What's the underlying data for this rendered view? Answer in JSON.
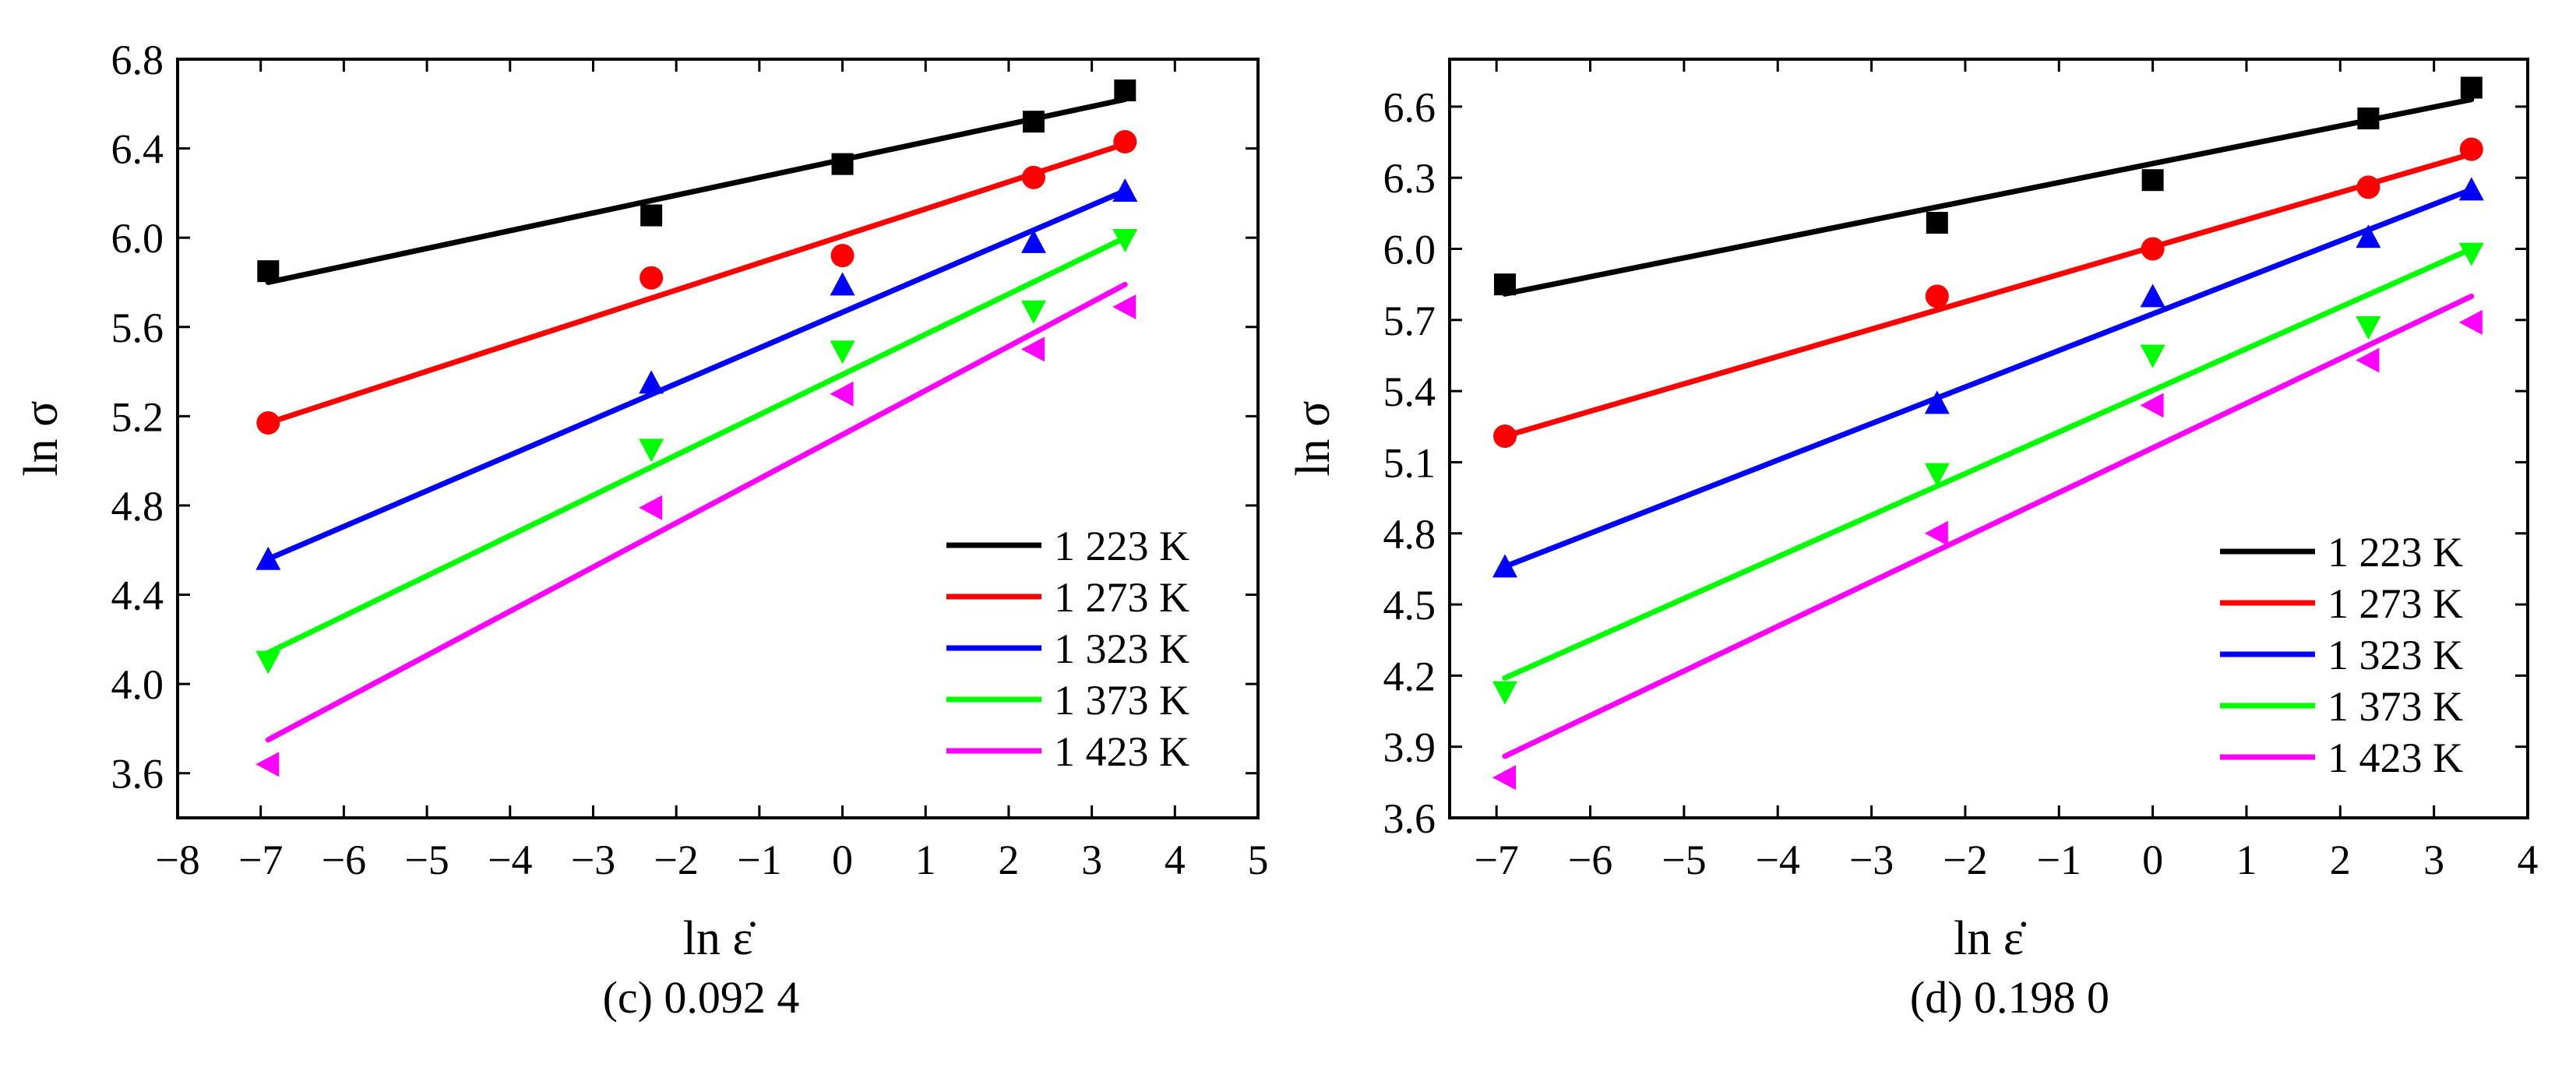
{
  "chart_data": [
    {
      "type": "scatter",
      "panel": "left",
      "caption": "(c) 0.092 4",
      "xlabel": "ln ε̇",
      "ylabel": "ln σ",
      "xlim": [
        -8,
        5
      ],
      "ylim": [
        3.4,
        6.8
      ],
      "xticks": [
        -8,
        -7,
        -6,
        -5,
        -4,
        -3,
        -2,
        -1,
        0,
        1,
        2,
        3,
        4,
        5
      ],
      "yticks": [
        3.6,
        4.0,
        4.4,
        4.8,
        5.2,
        5.6,
        6.0,
        6.4,
        6.8
      ],
      "ytick_labels": [
        "3.6",
        "4.0",
        "4.4",
        "4.8",
        "5.2",
        "5.6",
        "6.0",
        "6.4",
        "6.8"
      ],
      "x": [
        -6.91,
        -2.3,
        0,
        2.3,
        3.4
      ],
      "legend_position": "bottom-right",
      "grid": false,
      "series": [
        {
          "name": "1 223 K",
          "color": "#000000",
          "marker": "square",
          "values": [
            5.85,
            6.1,
            6.33,
            6.52,
            6.66
          ],
          "fit": [
            [
              -6.91,
              5.8
            ],
            [
              3.4,
              6.62
            ]
          ]
        },
        {
          "name": "1 273 K",
          "color": "#ff0000",
          "marker": "circle",
          "values": [
            5.17,
            5.82,
            5.92,
            6.27,
            6.43
          ],
          "fit": [
            [
              -6.91,
              5.17
            ],
            [
              3.4,
              6.42
            ]
          ]
        },
        {
          "name": "1 323 K",
          "color": "#0000ff",
          "marker": "triangle-up",
          "values": [
            4.56,
            5.35,
            5.79,
            5.98,
            6.21
          ],
          "fit": [
            [
              -6.91,
              4.56
            ],
            [
              3.4,
              6.21
            ]
          ]
        },
        {
          "name": "1 373 K",
          "color": "#00ff00",
          "marker": "triangle-down",
          "values": [
            4.1,
            5.05,
            5.49,
            5.67,
            5.99
          ],
          "fit": [
            [
              -6.91,
              4.14
            ],
            [
              3.4,
              6.0
            ]
          ]
        },
        {
          "name": "1 423 K",
          "color": "#ff00ff",
          "marker": "triangle-left",
          "values": [
            3.64,
            4.79,
            5.3,
            5.5,
            5.69
          ],
          "fit": [
            [
              -6.91,
              3.75
            ],
            [
              3.4,
              5.79
            ]
          ]
        }
      ]
    },
    {
      "type": "scatter",
      "panel": "right",
      "caption": "(d) 0.198 0",
      "xlabel": "ln ε̇",
      "ylabel": "ln σ",
      "xlim": [
        -7.5,
        4
      ],
      "ylim": [
        3.6,
        6.8
      ],
      "xticks": [
        -7,
        -6,
        -5,
        -4,
        -3,
        -2,
        -1,
        0,
        1,
        2,
        3,
        4
      ],
      "yticks": [
        3.6,
        3.9,
        4.2,
        4.5,
        4.8,
        5.1,
        5.4,
        5.7,
        6.0,
        6.3,
        6.6
      ],
      "ytick_labels": [
        "3.6",
        "3.9",
        "4.2",
        "4.5",
        "4.8",
        "5.1",
        "5.4",
        "5.7",
        "6.0",
        "6.3",
        "6.6"
      ],
      "x": [
        -6.91,
        -2.3,
        0,
        2.3,
        3.4
      ],
      "legend_position": "bottom-right",
      "grid": false,
      "series": [
        {
          "name": "1 223 K",
          "color": "#000000",
          "marker": "square",
          "values": [
            5.85,
            6.11,
            6.29,
            6.55,
            6.68
          ],
          "fit": [
            [
              -6.91,
              5.81
            ],
            [
              3.4,
              6.63
            ]
          ]
        },
        {
          "name": "1 273 K",
          "color": "#ff0000",
          "marker": "circle",
          "values": [
            5.21,
            5.8,
            6.0,
            6.26,
            6.42
          ],
          "fit": [
            [
              -6.91,
              5.21
            ],
            [
              3.4,
              6.4
            ]
          ]
        },
        {
          "name": "1 323 K",
          "color": "#0000ff",
          "marker": "triangle-up",
          "values": [
            4.66,
            5.35,
            5.8,
            6.05,
            6.25
          ],
          "fit": [
            [
              -6.91,
              4.66
            ],
            [
              3.4,
              6.25
            ]
          ]
        },
        {
          "name": "1 373 K",
          "color": "#00ff00",
          "marker": "triangle-down",
          "values": [
            4.13,
            5.05,
            5.55,
            5.67,
            5.98
          ],
          "fit": [
            [
              -6.91,
              4.19
            ],
            [
              3.4,
              6.0
            ]
          ]
        },
        {
          "name": "1 423 K",
          "color": "#ff00ff",
          "marker": "triangle-left",
          "values": [
            3.77,
            4.8,
            5.34,
            5.53,
            5.69
          ],
          "fit": [
            [
              -6.91,
              3.86
            ],
            [
              3.4,
              5.8
            ]
          ]
        }
      ]
    }
  ]
}
